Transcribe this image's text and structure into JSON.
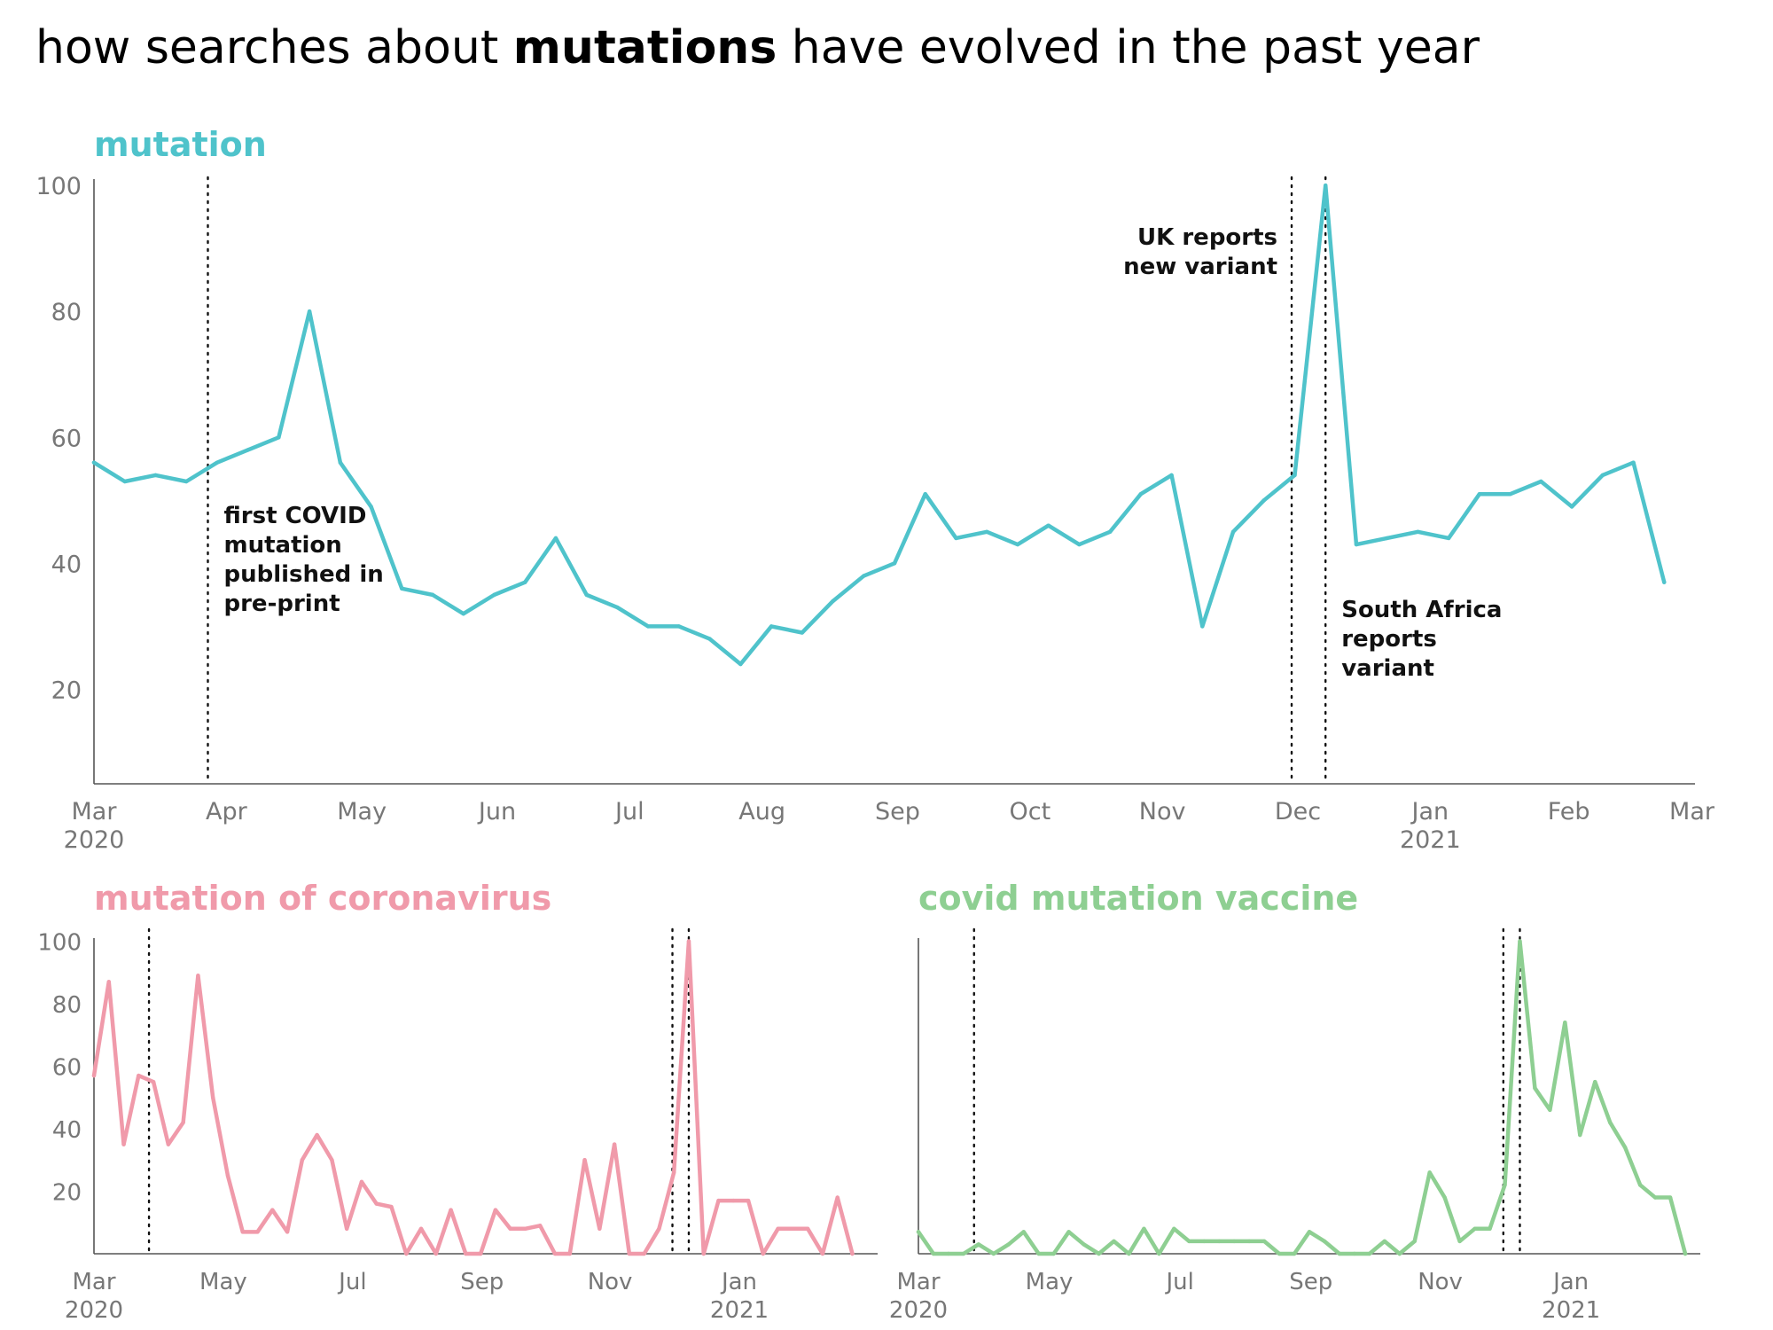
{
  "title": {
    "prefix": "how searches about ",
    "bold": "mutations",
    "suffix": " have evolved in the past year"
  },
  "chart_data": [
    {
      "type": "line",
      "title": "mutation",
      "color": "#4fc3cb",
      "x_unit": "weeks since 1 Mar 2020",
      "x_ticks": [
        {
          "w": 0,
          "label": "Mar",
          "sub": "2020"
        },
        {
          "w": 4.3,
          "label": "Apr"
        },
        {
          "w": 8.7,
          "label": "May"
        },
        {
          "w": 13.1,
          "label": "Jun"
        },
        {
          "w": 17.4,
          "label": "Jul"
        },
        {
          "w": 21.7,
          "label": "Aug"
        },
        {
          "w": 26.1,
          "label": "Sep"
        },
        {
          "w": 30.4,
          "label": "Oct"
        },
        {
          "w": 34.7,
          "label": "Nov"
        },
        {
          "w": 39.1,
          "label": "Dec"
        },
        {
          "w": 43.4,
          "label": "Jan",
          "sub": "2021"
        },
        {
          "w": 47.9,
          "label": "Feb"
        },
        {
          "w": 51.9,
          "label": "Mar"
        }
      ],
      "y_ticks": [
        20,
        40,
        60,
        80,
        100
      ],
      "ylim": [
        5,
        101
      ],
      "xlim": [
        0,
        52
      ],
      "values": [
        56,
        53,
        54,
        53,
        56,
        58,
        60,
        80,
        56,
        49,
        36,
        35,
        32,
        35,
        37,
        44,
        35,
        33,
        30,
        30,
        28,
        24,
        30,
        29,
        34,
        38,
        40,
        51,
        44,
        45,
        43,
        46,
        43,
        45,
        51,
        54,
        30,
        45,
        50,
        54,
        100,
        43,
        44,
        45,
        44,
        51,
        51,
        53,
        49,
        54,
        56,
        37
      ],
      "events": [
        {
          "w": 3.7,
          "label": [
            "first COVID",
            "mutation",
            "published in",
            "pre-print"
          ]
        },
        {
          "w": 38.9,
          "label": [
            "UK reports",
            "new variant"
          ]
        },
        {
          "w": 40.0,
          "label": [
            "South Africa",
            "reports",
            "variant"
          ]
        }
      ]
    },
    {
      "type": "line",
      "title": "mutation of coronavirus",
      "color": "#f09aaa",
      "x_unit": "weeks since 1 Mar 2020",
      "x_ticks": [
        {
          "w": 0,
          "label": "Mar",
          "sub": "2020"
        },
        {
          "w": 8.7,
          "label": "May"
        },
        {
          "w": 17.4,
          "label": "Jul"
        },
        {
          "w": 26.1,
          "label": "Sep"
        },
        {
          "w": 34.7,
          "label": "Nov"
        },
        {
          "w": 43.4,
          "label": "Jan",
          "sub": "2021"
        }
      ],
      "y_ticks": [
        20,
        40,
        60,
        80,
        100
      ],
      "ylim": [
        0,
        101
      ],
      "xlim": [
        0,
        52.7
      ],
      "values": [
        57,
        87,
        35,
        57,
        55,
        35,
        42,
        89,
        50,
        25,
        7,
        7,
        14,
        7,
        30,
        38,
        30,
        8,
        23,
        16,
        15,
        0,
        8,
        0,
        14,
        0,
        0,
        14,
        8,
        8,
        9,
        0,
        0,
        30,
        8,
        35,
        0,
        0,
        8,
        26,
        100,
        0,
        17,
        17,
        17,
        0,
        8,
        8,
        8,
        0,
        18,
        0
      ],
      "events": [
        {
          "w": 3.7
        },
        {
          "w": 38.9
        },
        {
          "w": 40.0
        }
      ]
    },
    {
      "type": "line",
      "title": "covid mutation vaccine",
      "color": "#8ecf92",
      "x_unit": "weeks since 1 Mar 2020",
      "x_ticks": [
        {
          "w": 0,
          "label": "Mar",
          "sub": "2020"
        },
        {
          "w": 8.7,
          "label": "May"
        },
        {
          "w": 17.4,
          "label": "Jul"
        },
        {
          "w": 26.1,
          "label": "Sep"
        },
        {
          "w": 34.7,
          "label": "Nov"
        },
        {
          "w": 43.4,
          "label": "Jan",
          "sub": "2021"
        }
      ],
      "y_ticks": [],
      "ylim": [
        0,
        101
      ],
      "xlim": [
        0,
        52
      ],
      "values": [
        7,
        0,
        0,
        0,
        3,
        0,
        3,
        7,
        0,
        0,
        7,
        3,
        0,
        4,
        0,
        8,
        0,
        8,
        4,
        4,
        4,
        4,
        4,
        4,
        0,
        0,
        7,
        4,
        0,
        0,
        0,
        4,
        0,
        4,
        26,
        18,
        4,
        8,
        8,
        22,
        100,
        53,
        46,
        74,
        38,
        55,
        42,
        34,
        22,
        18,
        18,
        0
      ],
      "events": [
        {
          "w": 3.7
        },
        {
          "w": 38.9
        },
        {
          "w": 40.0
        }
      ]
    }
  ]
}
